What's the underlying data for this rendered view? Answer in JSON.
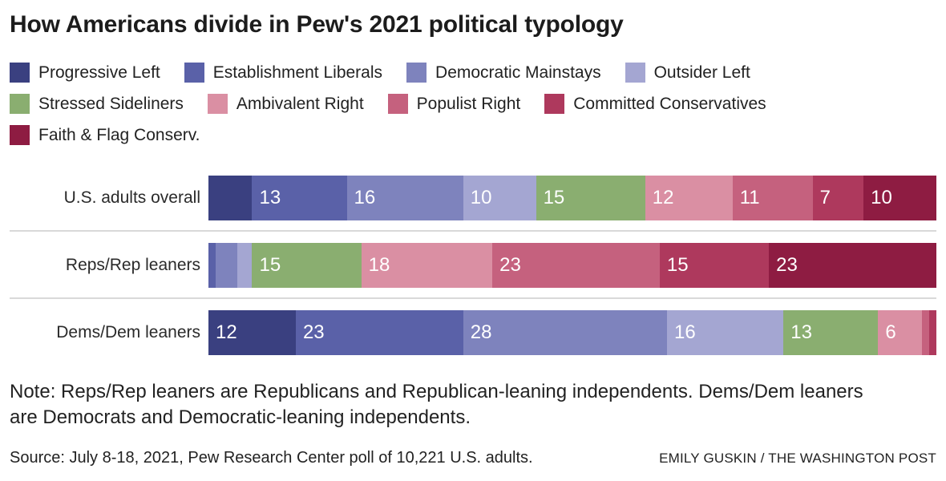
{
  "header": {
    "title": "How Americans divide in Pew's 2021 political typology"
  },
  "chart_data": {
    "type": "bar",
    "stacked": true,
    "orientation": "horizontal",
    "title": "How Americans divide in Pew's 2021 political typology",
    "categories": [
      "U.S. adults overall",
      "Reps/Rep leaners",
      "Dems/Dem leaners"
    ],
    "series": [
      {
        "name": "Progressive Left",
        "color": "#3a4080",
        "values": [
          6,
          0,
          12
        ],
        "value_labels": [
          "",
          "",
          "12"
        ]
      },
      {
        "name": "Establishment Liberals",
        "color": "#5a61a8",
        "values": [
          13,
          1,
          23
        ],
        "value_labels": [
          "13",
          "",
          "23"
        ]
      },
      {
        "name": "Democratic Mainstays",
        "color": "#7e83bd",
        "values": [
          16,
          3,
          28
        ],
        "value_labels": [
          "16",
          "",
          "28"
        ]
      },
      {
        "name": "Outsider Left",
        "color": "#a4a6d2",
        "values": [
          10,
          2,
          16
        ],
        "value_labels": [
          "10",
          "",
          "16"
        ]
      },
      {
        "name": "Stressed Sideliners",
        "color": "#8aae70",
        "values": [
          15,
          15,
          13
        ],
        "value_labels": [
          "15",
          "15",
          "13"
        ]
      },
      {
        "name": "Ambivalent Right",
        "color": "#da8fa3",
        "values": [
          12,
          18,
          6
        ],
        "value_labels": [
          "12",
          "18",
          "6"
        ]
      },
      {
        "name": "Populist Right",
        "color": "#c5617e",
        "values": [
          11,
          23,
          1
        ],
        "value_labels": [
          "11",
          "23",
          ""
        ]
      },
      {
        "name": "Committed Conservatives",
        "color": "#ae395d",
        "values": [
          7,
          15,
          1
        ],
        "value_labels": [
          "7",
          "15",
          ""
        ]
      },
      {
        "name": "Faith & Flag Conserv.",
        "color": "#8e1c42",
        "values": [
          10,
          23,
          0
        ],
        "value_labels": [
          "10",
          "23",
          ""
        ]
      }
    ],
    "xlim": [
      0,
      100
    ],
    "legend_position": "top",
    "grid": false,
    "value_label_style": "white, inside segment start"
  },
  "note": {
    "text": "Note: Reps/Rep leaners are Republicans and Republican-leaning independents. Dems/Dem leaners are Democrats and Democratic-leaning independents."
  },
  "source": {
    "text": "Source: July 8-18, 2021, Pew Research Center poll of 10,221 U.S. adults.",
    "credit": "EMILY GUSKIN / THE WASHINGTON POST"
  }
}
